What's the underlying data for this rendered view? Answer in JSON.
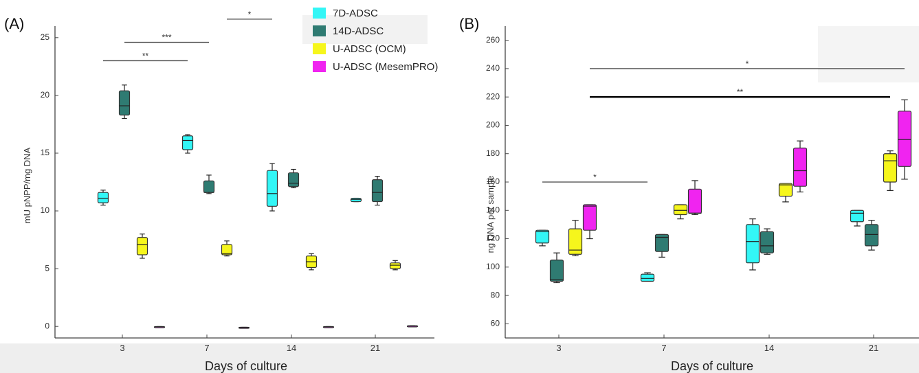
{
  "legend": [
    {
      "label": "7D-ADSC",
      "color": "#33f6f6"
    },
    {
      "label": "14D-ADSC",
      "color": "#2f7b72"
    },
    {
      "label": "U-ADSC (OCM)",
      "color": "#f6f61c"
    },
    {
      "label": "U-ADSC (MesemPRO)",
      "color": "#f024f0"
    }
  ],
  "chart_data": [
    {
      "panel": "(A)",
      "type": "box",
      "xlabel": "Days of culture",
      "ylabel": "mU pNPP/mg DNA",
      "categories": [
        "3",
        "7",
        "14",
        "21"
      ],
      "yticks": [
        0,
        5,
        10,
        15,
        20,
        25
      ],
      "ylim": [
        -1,
        26
      ],
      "series": [
        {
          "name": "7D-ADSC",
          "color": "#33f6f6",
          "boxes": [
            {
              "min": 10.5,
              "q1": 10.7,
              "median": 11.1,
              "q3": 11.6,
              "max": 11.8
            },
            {
              "min": 15.0,
              "q1": 15.3,
              "median": 16.1,
              "q3": 16.5,
              "max": 16.6
            },
            {
              "min": 10.0,
              "q1": 10.4,
              "median": 11.5,
              "q3": 13.5,
              "max": 14.1
            },
            {
              "min": 10.8,
              "q1": 10.8,
              "median": 11.0,
              "q3": 11.1,
              "max": 11.1
            }
          ]
        },
        {
          "name": "14D-ADSC",
          "color": "#2f7b72",
          "boxes": [
            {
              "min": 18.0,
              "q1": 18.3,
              "median": 19.1,
              "q3": 20.4,
              "max": 20.9
            },
            {
              "min": 11.5,
              "q1": 11.6,
              "median": 11.6,
              "q3": 12.6,
              "max": 13.1
            },
            {
              "min": 12.0,
              "q1": 12.1,
              "median": 12.4,
              "q3": 13.3,
              "max": 13.6
            },
            {
              "min": 10.5,
              "q1": 10.8,
              "median": 11.6,
              "q3": 12.7,
              "max": 13.0
            }
          ]
        },
        {
          "name": "U-ADSC (OCM)",
          "color": "#f6f61c",
          "boxes": [
            {
              "min": 5.9,
              "q1": 6.2,
              "median": 7.1,
              "q3": 7.7,
              "max": 8.0
            },
            {
              "min": 6.1,
              "q1": 6.2,
              "median": 6.3,
              "q3": 7.1,
              "max": 7.4
            },
            {
              "min": 4.9,
              "q1": 5.1,
              "median": 5.6,
              "q3": 6.1,
              "max": 6.3
            },
            {
              "min": 4.9,
              "q1": 5.0,
              "median": 5.3,
              "q3": 5.5,
              "max": 5.7
            }
          ]
        },
        {
          "name": "U-ADSC (MesemPRO)",
          "color": "#f024f0",
          "boxes": [
            {
              "min": -0.02,
              "q1": -0.02,
              "median": -0.02,
              "q3": -0.02,
              "max": -0.02
            },
            {
              "min": -0.08,
              "q1": -0.08,
              "median": -0.08,
              "q3": -0.08,
              "max": -0.08
            },
            {
              "min": -0.02,
              "q1": -0.02,
              "median": -0.02,
              "q3": -0.02,
              "max": -0.02
            },
            {
              "min": 0.05,
              "q1": 0.05,
              "median": 0.05,
              "q3": 0.05,
              "max": 0.05
            }
          ]
        }
      ],
      "significance": [
        {
          "label": "**",
          "from_day": "3",
          "from_series": 0,
          "to_day": "7",
          "to_series": 0,
          "y": 23.0
        },
        {
          "label": "***",
          "from_day": "3",
          "from_series": 1,
          "to_day": "7",
          "to_series": 1,
          "y": 24.6
        },
        {
          "label": "*",
          "from_day": "7",
          "from_series": 2,
          "to_day": "14",
          "to_series": 0,
          "y": 26.6
        }
      ]
    },
    {
      "panel": "(B)",
      "type": "box",
      "xlabel": "Days of culture",
      "ylabel": "ng DNA per sample",
      "categories": [
        "3",
        "7",
        "14",
        "21"
      ],
      "yticks": [
        60,
        80,
        100,
        120,
        140,
        160,
        180,
        200,
        220,
        240,
        260
      ],
      "ylim": [
        50,
        270
      ],
      "series": [
        {
          "name": "7D-ADSC",
          "color": "#33f6f6",
          "boxes": [
            {
              "min": 115,
              "q1": 117,
              "median": 125,
              "q3": 126,
              "max": 126
            },
            {
              "min": 90,
              "q1": 90,
              "median": 92,
              "q3": 95,
              "max": 96
            },
            {
              "min": 98,
              "q1": 103,
              "median": 118,
              "q3": 130,
              "max": 134
            },
            {
              "min": 129,
              "q1": 132,
              "median": 138,
              "q3": 140,
              "max": 140
            }
          ]
        },
        {
          "name": "14D-ADSC",
          "color": "#2f7b72",
          "boxes": [
            {
              "min": 89,
              "q1": 90,
              "median": 91,
              "q3": 105,
              "max": 110
            },
            {
              "min": 107,
              "q1": 111,
              "median": 121,
              "q3": 123,
              "max": 123
            },
            {
              "min": 109,
              "q1": 110,
              "median": 115,
              "q3": 125,
              "max": 127
            },
            {
              "min": 112,
              "q1": 115,
              "median": 123,
              "q3": 130,
              "max": 133
            }
          ]
        },
        {
          "name": "U-ADSC (OCM)",
          "color": "#f6f61c",
          "boxes": [
            {
              "min": 108,
              "q1": 109,
              "median": 112,
              "q3": 127,
              "max": 133
            },
            {
              "min": 134,
              "q1": 137,
              "median": 140,
              "q3": 144,
              "max": 144
            },
            {
              "min": 146,
              "q1": 150,
              "median": 158,
              "q3": 159,
              "max": 159
            },
            {
              "min": 154,
              "q1": 160,
              "median": 175,
              "q3": 180,
              "max": 182
            }
          ]
        },
        {
          "name": "U-ADSC (MesemPRO)",
          "color": "#f024f0",
          "boxes": [
            {
              "min": 120,
              "q1": 126,
              "median": 143,
              "q3": 144,
              "max": 144
            },
            {
              "min": 137,
              "q1": 138,
              "median": 138,
              "q3": 155,
              "max": 161
            },
            {
              "min": 153,
              "q1": 157,
              "median": 168,
              "q3": 184,
              "max": 189
            },
            {
              "min": 162,
              "q1": 171,
              "median": 190,
              "q3": 210,
              "max": 218
            }
          ]
        }
      ],
      "significance": [
        {
          "label": "*",
          "from_day": "3",
          "from_series": 0,
          "to_day": "7",
          "to_series": 0,
          "y": 160
        },
        {
          "label": "**",
          "from_day": "3",
          "from_series": 3,
          "to_day": "21",
          "to_series": 2,
          "y": 220,
          "bold": true
        },
        {
          "label": "*",
          "from_day": "3",
          "from_series": 3,
          "to_day": "21",
          "to_series": 3,
          "y": 240
        }
      ]
    }
  ]
}
